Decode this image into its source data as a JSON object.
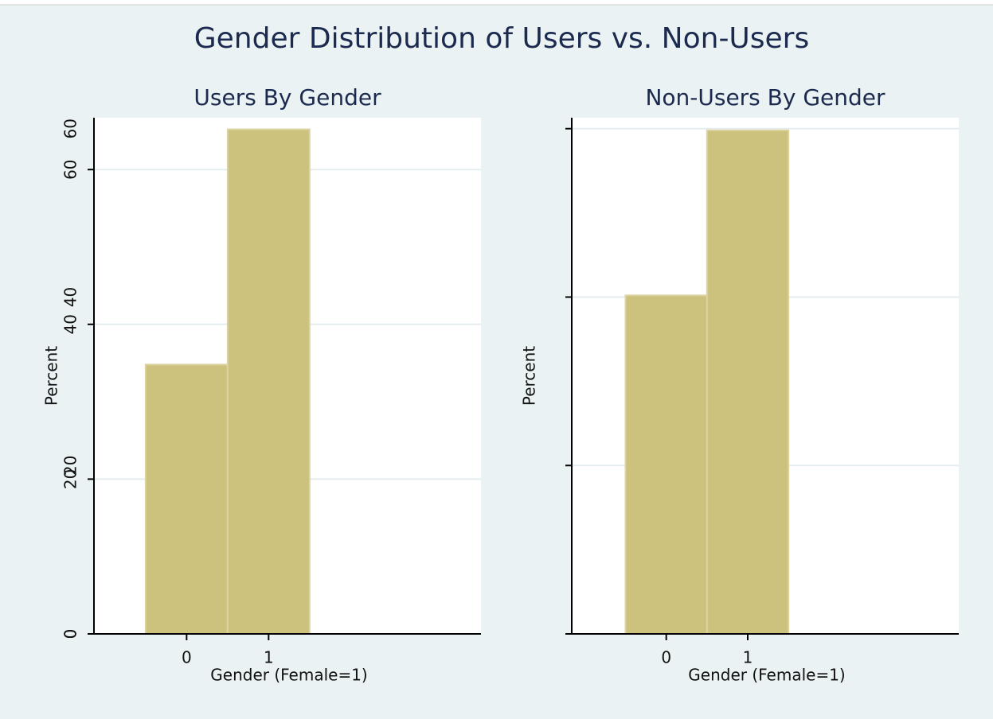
{
  "title": "Gender Distribution of Users vs. Non-Users",
  "chart_data": [
    {
      "type": "histogram",
      "title": "Users By Gender",
      "xlabel": "Gender (Female=1)",
      "ylabel": "Percent",
      "bins": [
        -0.5,
        0.5,
        1.5
      ],
      "values": [
        34.8,
        65.2
      ],
      "color": "#cdc17e",
      "xlim": [
        -1.13,
        3.59
      ],
      "xticks": [
        0,
        1
      ],
      "ylim": [
        0,
        66.7
      ],
      "yticks": [
        0,
        20,
        40,
        60
      ],
      "grid": true
    },
    {
      "type": "histogram",
      "title": "Non-Users By Gender",
      "xlabel": "Gender (Female=1)",
      "ylabel": "Percent",
      "bins": [
        -0.5,
        0.5,
        1.5
      ],
      "values": [
        40.2,
        59.8
      ],
      "color": "#cdc17e",
      "xlim": [
        -1.16,
        3.59
      ],
      "xticks": [
        0,
        1
      ],
      "ylim": [
        0,
        61.3
      ],
      "yticks": [
        0,
        20,
        40,
        60
      ],
      "grid": true
    }
  ]
}
